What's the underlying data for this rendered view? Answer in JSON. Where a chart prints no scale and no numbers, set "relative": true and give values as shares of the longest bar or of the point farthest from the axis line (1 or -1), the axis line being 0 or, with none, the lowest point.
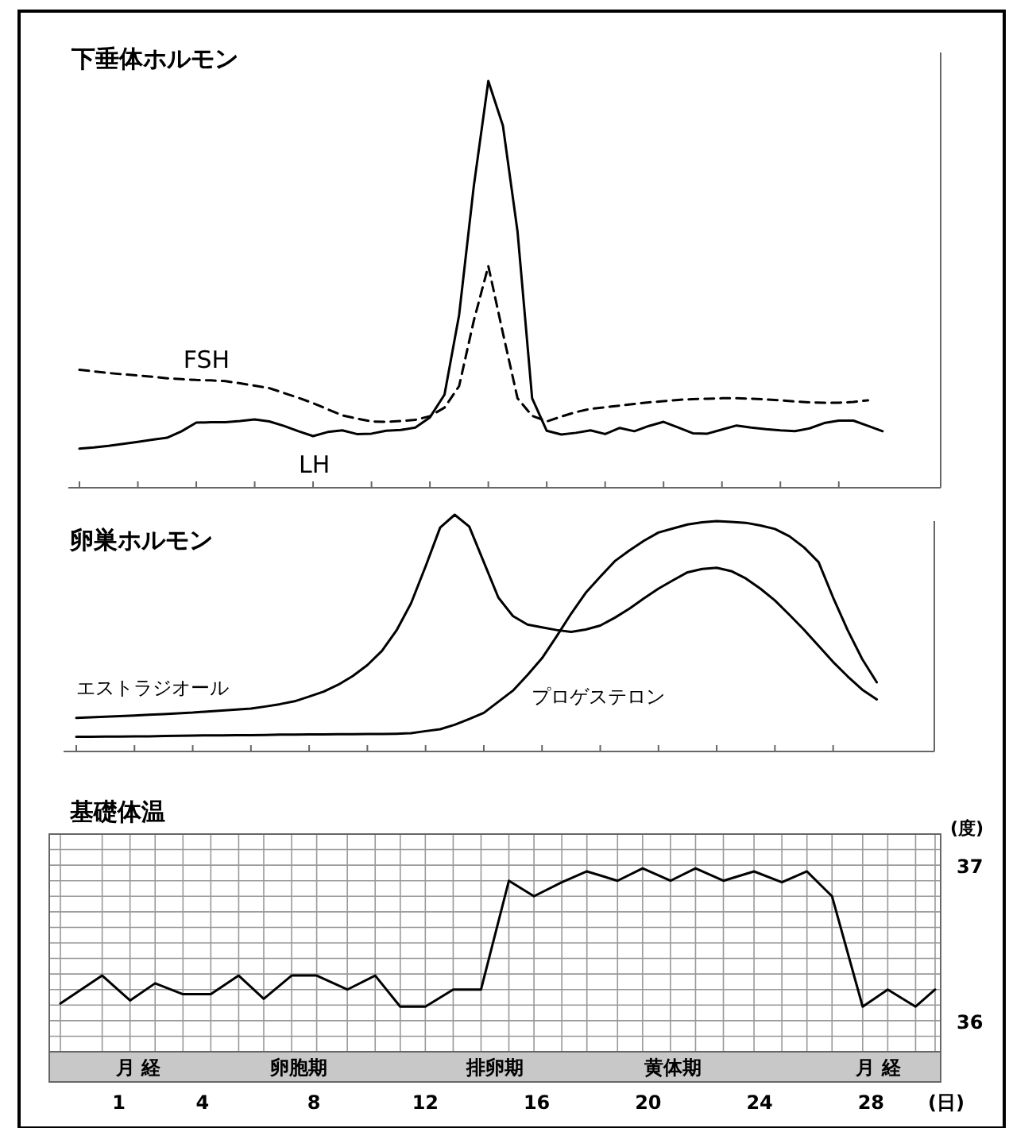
{
  "chart_data": [
    {
      "type": "line",
      "title": "下垂体ホルモン",
      "relative": true,
      "categories": [
        null,
        null,
        null,
        null,
        null,
        null,
        null,
        null,
        null,
        null,
        null,
        null,
        null,
        null,
        null,
        null,
        null,
        null,
        null,
        null,
        null,
        null,
        null,
        null,
        null,
        null,
        null,
        null,
        null,
        null,
        null,
        null,
        null,
        null,
        null,
        null,
        null,
        null,
        null,
        null,
        null,
        null,
        null,
        null,
        null,
        null,
        null,
        null,
        null,
        null,
        null,
        null,
        null,
        null,
        null,
        null
      ],
      "series": [
        {
          "name": "FSH",
          "color": "#000000",
          "line_style": "dashed",
          "values": [
            0.29,
            0.286,
            0.282,
            0.279,
            0.276,
            0.273,
            0.269,
            0.267,
            0.265,
            0.264,
            0.262,
            0.257,
            0.251,
            0.245,
            0.233,
            0.221,
            0.208,
            0.193,
            0.178,
            0.17,
            0.163,
            0.162,
            0.164,
            0.167,
            0.176,
            0.197,
            0.25,
            0.41,
            0.545,
            0.38,
            0.22,
            0.177,
            0.163,
            0.175,
            0.186,
            0.194,
            0.198,
            0.202,
            0.206,
            0.21,
            0.213,
            0.216,
            0.218,
            0.219,
            0.22,
            0.22,
            0.219,
            0.217,
            0.215,
            0.212,
            0.21,
            0.209,
            0.209,
            0.211,
            0.215,
            null
          ]
        },
        {
          "name": "LH",
          "color": "#000000",
          "line_style": "solid",
          "values": [
            0.096,
            0.099,
            0.103,
            0.108,
            0.113,
            0.118,
            0.123,
            0.139,
            0.16,
            0.161,
            0.161,
            0.164,
            0.168,
            0.163,
            0.152,
            0.139,
            0.127,
            0.137,
            0.141,
            0.132,
            0.133,
            0.14,
            0.142,
            0.148,
            0.173,
            0.229,
            0.425,
            0.74,
            1.0,
            0.89,
            0.63,
            0.22,
            0.14,
            0.131,
            0.135,
            0.141,
            0.132,
            0.147,
            0.139,
            0.152,
            0.162,
            0.148,
            0.134,
            0.133,
            0.143,
            0.153,
            0.148,
            0.144,
            0.141,
            0.139,
            0.146,
            0.159,
            0.165,
            0.165,
            0.152,
            0.139
          ]
        }
      ]
    },
    {
      "type": "line",
      "title": "卵巣ホルモン",
      "relative": true,
      "categories": [
        null,
        null,
        null,
        null,
        null,
        null,
        null,
        null,
        null,
        null,
        null,
        null,
        null,
        null,
        null,
        null,
        null,
        null,
        null,
        null,
        null,
        null,
        null,
        null,
        null,
        null,
        null,
        null,
        null,
        null,
        null,
        null,
        null,
        null,
        null,
        null,
        null,
        null,
        null,
        null,
        null,
        null,
        null,
        null,
        null,
        null,
        null,
        null,
        null,
        null,
        null,
        null,
        null,
        null,
        null,
        null
      ],
      "series": [
        {
          "name": "エストラジオール",
          "color": "#000000",
          "values": [
            0.142,
            0.144,
            0.147,
            0.149,
            0.152,
            0.155,
            0.158,
            0.161,
            0.164,
            0.169,
            0.173,
            0.177,
            0.181,
            0.19,
            0.2,
            0.212,
            0.232,
            0.253,
            0.282,
            0.319,
            0.365,
            0.425,
            0.511,
            0.626,
            0.782,
            0.946,
            1.0,
            0.95,
            0.8,
            0.65,
            0.572,
            0.536,
            0.524,
            0.513,
            0.505,
            0.515,
            0.532,
            0.565,
            0.603,
            0.647,
            0.688,
            0.723,
            0.757,
            0.771,
            0.776,
            0.762,
            0.731,
            0.688,
            0.638,
            0.577,
            0.514,
            0.446,
            0.378,
            0.317,
            0.261,
            0.22
          ]
        },
        {
          "name": "プロゲステロン",
          "color": "#000000",
          "values": [
            0.062,
            0.062,
            0.063,
            0.063,
            0.064,
            0.064,
            0.065,
            0.066,
            0.067,
            0.068,
            0.068,
            0.069,
            0.069,
            0.07,
            0.071,
            0.071,
            0.072,
            0.072,
            0.073,
            0.073,
            0.074,
            0.074,
            0.075,
            0.077,
            0.086,
            0.094,
            0.113,
            0.137,
            0.163,
            0.21,
            0.257,
            0.323,
            0.394,
            0.486,
            0.582,
            0.67,
            0.738,
            0.804,
            0.849,
            0.89,
            0.925,
            0.942,
            0.959,
            0.968,
            0.973,
            0.97,
            0.966,
            0.955,
            0.94,
            0.909,
            0.862,
            0.8,
            0.65,
            0.512,
            0.39,
            0.292
          ]
        }
      ]
    },
    {
      "type": "line",
      "title": "基礎体温",
      "xlabel": "(日)",
      "ylabel": "(度)",
      "grid": true,
      "xlim": [
        -1.5,
        30.5
      ],
      "ylim": [
        35.8,
        37.2
      ],
      "xticks": [
        1,
        4,
        8,
        12,
        16,
        20,
        24,
        28
      ],
      "yticks": [
        {
          "value": 35.8,
          "label": null
        },
        {
          "value": 35.9,
          "label": null
        },
        36,
        {
          "value": 36.1,
          "label": null
        },
        {
          "value": 36.2,
          "label": null
        },
        {
          "value": 36.3,
          "label": null
        },
        {
          "value": 36.4,
          "label": null
        },
        {
          "value": 36.5,
          "label": null
        },
        {
          "value": 36.6,
          "label": null
        },
        {
          "value": 36.7,
          "label": null
        },
        {
          "value": 36.8,
          "label": null
        },
        {
          "value": 36.9,
          "label": null
        },
        37,
        {
          "value": 37.1,
          "label": null
        },
        {
          "value": 37.2,
          "label": null
        }
      ],
      "series": [
        {
          "color": "#000000",
          "x": [
            -1.1,
            0.4,
            1.4,
            2.3,
            3.3,
            4.3,
            5.3,
            6.2,
            7.2,
            8.1,
            9.2,
            10.2,
            11.1,
            12.0,
            13.0,
            14.0,
            15.0,
            15.9,
            16.9,
            17.8,
            18.9,
            19.8,
            20.8,
            21.7,
            22.7,
            23.8,
            24.8,
            25.7,
            26.6,
            27.7,
            28.6,
            29.6,
            30.3
          ],
          "values": [
            36.11,
            36.29,
            36.13,
            36.24,
            36.17,
            36.17,
            36.29,
            36.14,
            36.29,
            36.29,
            36.2,
            36.29,
            36.09,
            36.09,
            36.2,
            36.2,
            36.9,
            36.8,
            36.89,
            36.96,
            36.9,
            36.98,
            36.9,
            36.98,
            36.9,
            36.96,
            36.89,
            36.96,
            36.8,
            36.09,
            36.2,
            36.09,
            36.2
          ]
        }
      ],
      "annotations": [
        "月 経",
        "卵胞期",
        "排卵期",
        "黄体期",
        "月 経"
      ]
    }
  ]
}
